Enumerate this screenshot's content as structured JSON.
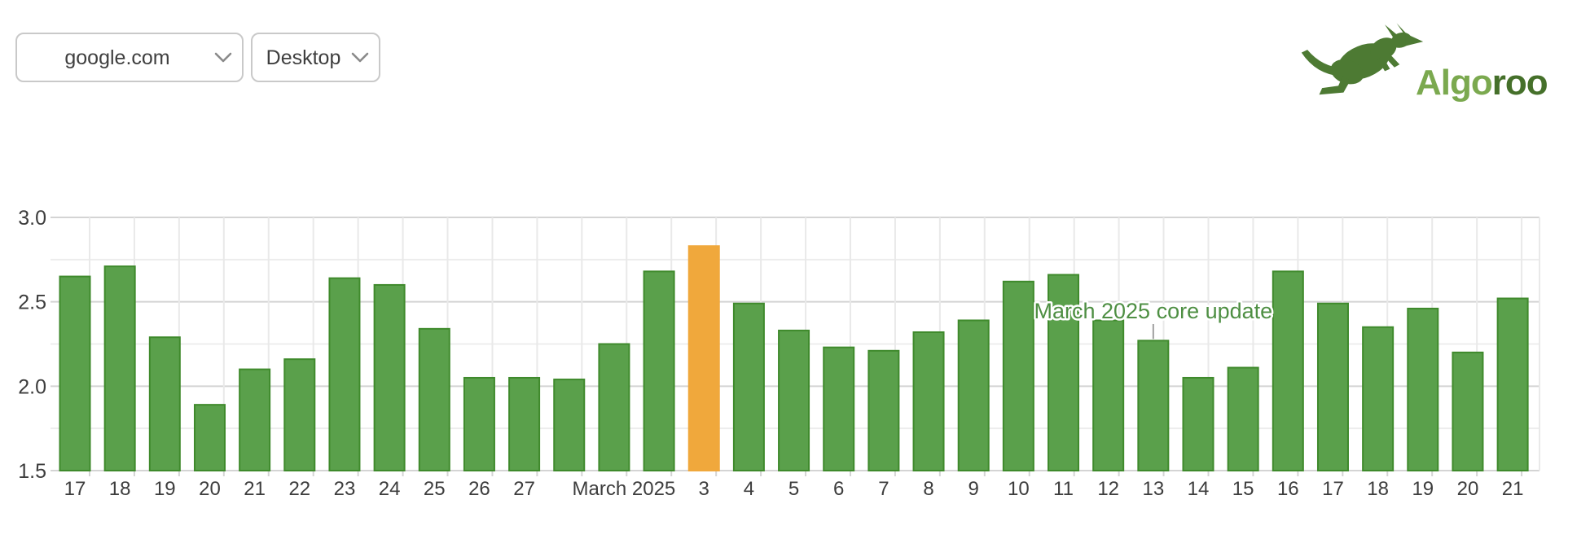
{
  "header": {
    "site_select": {
      "value": "google.com"
    },
    "device_select": {
      "value": "Desktop"
    },
    "logo": {
      "icon": "kangaroo-icon",
      "brand_part1": "Algo",
      "brand_part2": "roo"
    }
  },
  "colors": {
    "bar_green": "#5aa04b",
    "bar_green_border": "#3f8a2c",
    "bar_highlight_orange": "#f0a83c",
    "annotation_green": "#4e8f43",
    "grid_major": "#d4d4d4",
    "grid_minor": "#ededed",
    "grid_vertical": "#e9e9e9",
    "axis_text": "#3d3d3d",
    "leader_line": "#a0a0a0",
    "logo_dark_green": "#4d7a33",
    "logo_light_green": "#7ba94f",
    "logo_text_dark": "#45702a"
  },
  "chart_data": {
    "type": "bar",
    "title": "",
    "xlabel": "",
    "ylabel": "",
    "ylim": [
      1.5,
      3.0
    ],
    "yticks": [
      1.5,
      2.0,
      2.5,
      3.0
    ],
    "ytick_labels": [
      "1.5",
      "2.0",
      "2.5",
      "3.0"
    ],
    "minor_yticks": [
      1.75,
      2.25,
      2.75
    ],
    "grid": true,
    "x": [
      "17",
      "18",
      "19",
      "20",
      "21",
      "22",
      "23",
      "24",
      "25",
      "26",
      "27",
      "",
      "March 2025",
      "",
      "3",
      "4",
      "5",
      "6",
      "7",
      "8",
      "9",
      "10",
      "11",
      "12",
      "13",
      "14",
      "15",
      "16",
      "17",
      "18",
      "19",
      "20",
      "21"
    ],
    "values": [
      2.65,
      2.71,
      2.29,
      1.89,
      2.1,
      2.16,
      2.64,
      2.6,
      2.34,
      2.05,
      2.05,
      2.04,
      2.25,
      2.68,
      2.83,
      2.49,
      2.33,
      2.23,
      2.21,
      2.32,
      2.39,
      2.62,
      2.66,
      2.39,
      2.27,
      2.05,
      2.11,
      2.68,
      2.49,
      2.35,
      2.46,
      2.2,
      2.52
    ],
    "highlight_index": 14,
    "annotation": {
      "text": "March 2025 core update",
      "bar_index": 24
    },
    "legend": null
  }
}
